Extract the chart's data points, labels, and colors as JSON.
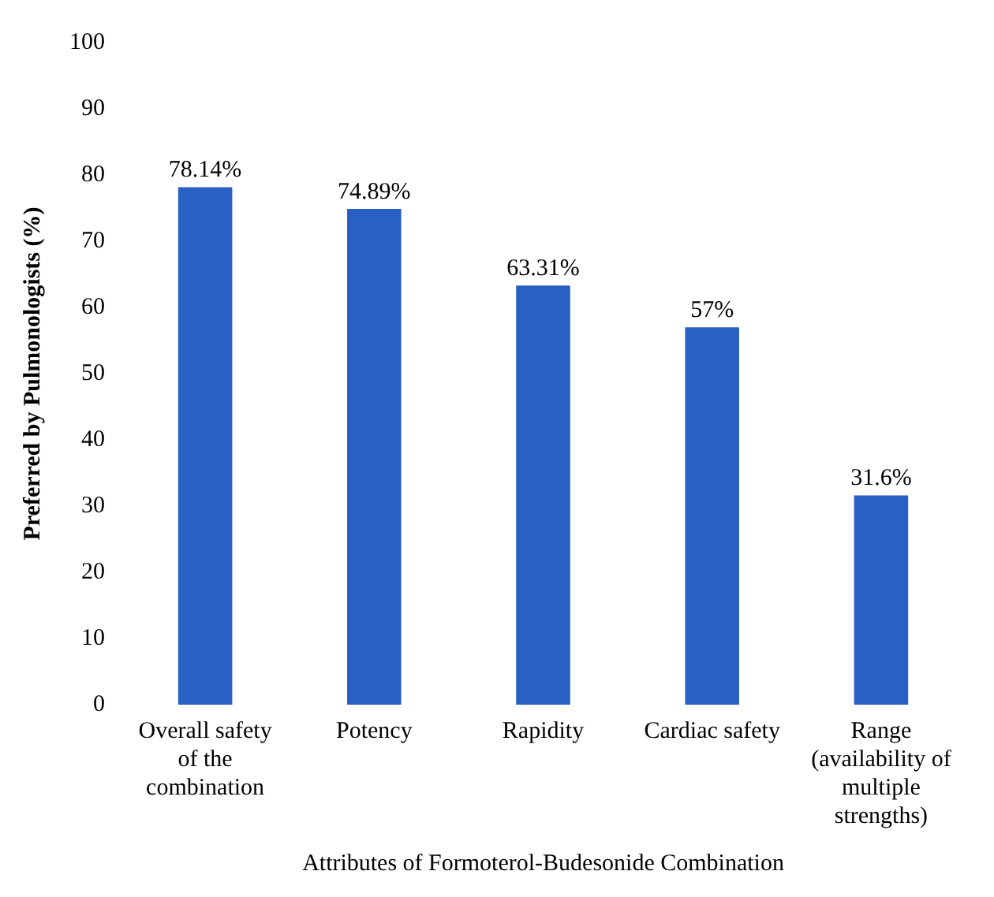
{
  "chart_data": {
    "type": "bar",
    "xlabel": "Attributes of Formoterol-Budesonide Combination",
    "ylabel": "Preferred by Pulmonologists (%)",
    "categories": [
      "Overall safety of the combination",
      "Potency",
      "Rapidity",
      "Cardiac safety",
      "Range (availability of multiple strengths)"
    ],
    "values": [
      78.14,
      74.89,
      63.31,
      57,
      31.6
    ],
    "value_labels": [
      "78.14%",
      "74.89%",
      "63.31%",
      "57%",
      "31.6%"
    ],
    "color": "#2a5fc4",
    "ylim": [
      0,
      100
    ],
    "yticks": [
      0,
      10,
      20,
      30,
      40,
      50,
      60,
      70,
      80,
      90,
      100
    ],
    "grid": false,
    "legend": false
  }
}
